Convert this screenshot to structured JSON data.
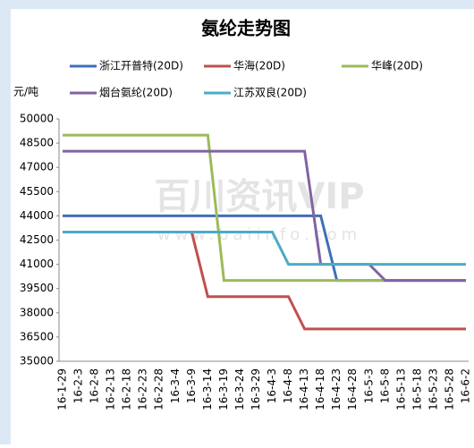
{
  "chart_data": {
    "type": "line",
    "title": "氨纶走势图",
    "y_label": "元/吨",
    "watermark": "百川资讯VIP",
    "watermark_url": "www.baiinfo.com",
    "categories": [
      "16-1-29",
      "16-2-3",
      "16-2-8",
      "16-2-13",
      "16-2-18",
      "16-2-23",
      "16-2-28",
      "16-3-4",
      "16-3-9",
      "16-3-14",
      "16-3-19",
      "16-3-24",
      "16-3-29",
      "16-4-3",
      "16-4-8",
      "16-4-13",
      "16-4-18",
      "16-4-23",
      "16-4-28",
      "16-5-3",
      "16-5-8",
      "16-5-13",
      "16-5-18",
      "16-5-23",
      "16-5-28",
      "16-6-2"
    ],
    "series": [
      {
        "name": "浙江开普特(20D)",
        "color": "#3f6fb8",
        "values": [
          44000,
          44000,
          44000,
          44000,
          44000,
          44000,
          44000,
          44000,
          44000,
          44000,
          44000,
          44000,
          44000,
          44000,
          44000,
          44000,
          44000,
          40000,
          40000,
          40000,
          40000,
          40000,
          40000,
          40000,
          40000,
          40000
        ]
      },
      {
        "name": "华海(20D)",
        "color": "#c0504d",
        "values": [
          43000,
          43000,
          43000,
          43000,
          43000,
          43000,
          43000,
          43000,
          43000,
          39000,
          39000,
          39000,
          39000,
          39000,
          39000,
          37000,
          37000,
          37000,
          37000,
          37000,
          37000,
          37000,
          37000,
          37000,
          37000,
          37000
        ]
      },
      {
        "name": "华峰(20D)",
        "color": "#9bbb59",
        "values": [
          49000,
          49000,
          49000,
          49000,
          49000,
          49000,
          49000,
          49000,
          49000,
          49000,
          40000,
          40000,
          40000,
          40000,
          40000,
          40000,
          40000,
          40000,
          40000,
          40000,
          40000,
          40000,
          40000,
          40000,
          40000,
          40000
        ]
      },
      {
        "name": "烟台氨纶(20D)",
        "color": "#8064a2",
        "values": [
          48000,
          48000,
          48000,
          48000,
          48000,
          48000,
          48000,
          48000,
          48000,
          48000,
          48000,
          48000,
          48000,
          48000,
          48000,
          48000,
          41000,
          41000,
          41000,
          41000,
          40000,
          40000,
          40000,
          40000,
          40000,
          40000
        ]
      },
      {
        "name": "江苏双良(20D)",
        "color": "#4bacc6",
        "values": [
          43000,
          43000,
          43000,
          43000,
          43000,
          43000,
          43000,
          43000,
          43000,
          43000,
          43000,
          43000,
          43000,
          43000,
          41000,
          41000,
          41000,
          41000,
          41000,
          41000,
          41000,
          41000,
          41000,
          41000,
          41000,
          41000
        ]
      }
    ],
    "ylim": [
      35000,
      50000
    ],
    "yticks": [
      35000,
      36500,
      38000,
      39500,
      41000,
      42500,
      44000,
      45500,
      47000,
      48500,
      50000
    ],
    "grid": false
  }
}
